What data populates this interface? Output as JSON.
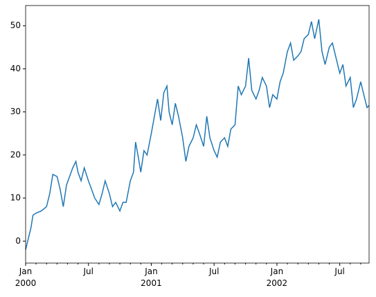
{
  "chart_data": {
    "type": "line",
    "x": [
      0,
      0.3,
      0.5,
      0.7,
      1,
      1.5,
      2,
      2.3,
      2.6,
      3,
      3.3,
      3.6,
      3.9,
      4.2,
      4.5,
      4.8,
      5,
      5.3,
      5.6,
      6,
      6.3,
      6.6,
      7,
      7.3,
      7.6,
      8,
      8.3,
      8.6,
      9,
      9.3,
      9.6,
      10,
      10.3,
      10.5,
      10.8,
      11,
      11.3,
      11.6,
      12,
      12.3,
      12.6,
      12.9,
      13.2,
      13.5,
      13.7,
      14,
      14.3,
      14.6,
      15,
      15.3,
      15.6,
      16,
      16.3,
      16.6,
      17,
      17.3,
      17.6,
      18,
      18.3,
      18.6,
      19,
      19.3,
      19.6,
      20,
      20.3,
      20.6,
      21,
      21.3,
      21.6,
      22,
      22.3,
      22.6,
      23,
      23.3,
      23.6,
      24,
      24.3,
      24.6,
      25,
      25.3,
      25.6,
      26,
      26.3,
      26.6,
      27,
      27.3,
      27.6,
      28,
      28.3,
      28.6,
      29,
      29.3,
      29.6,
      30,
      30.3,
      30.6,
      31,
      31.3,
      31.6,
      32,
      32.3,
      32.6,
      32.8
    ],
    "series": [
      {
        "color": "#1f77b4",
        "values": [
          -2,
          1,
          3,
          6,
          6.5,
          7,
          8,
          11,
          15.5,
          15,
          12,
          8,
          13,
          15,
          17,
          18.5,
          16,
          14,
          17,
          14,
          12,
          10,
          8.5,
          11,
          14,
          11,
          8,
          9,
          7,
          9,
          9,
          14,
          16,
          23,
          19,
          16,
          21,
          20,
          25,
          29,
          33,
          28,
          34.5,
          36,
          30,
          27,
          32,
          29,
          24,
          18.5,
          22,
          24,
          27,
          25,
          22,
          29,
          24,
          21,
          19.5,
          23,
          24,
          22,
          26,
          27,
          36,
          34,
          36,
          42.5,
          35,
          33,
          35,
          38,
          36,
          31,
          34,
          33,
          37,
          39,
          44,
          46,
          42,
          43,
          44,
          47,
          48,
          51,
          47,
          51.5,
          44,
          41,
          45,
          46,
          43,
          39,
          41,
          36,
          38,
          31,
          33,
          37,
          34,
          31,
          31.5
        ]
      }
    ],
    "xlim": [
      0,
      32.8
    ],
    "xticks": [
      {
        "value": 0,
        "label": "Jan\n2000"
      },
      {
        "value": 6,
        "label": "Jul"
      },
      {
        "value": 12,
        "label": "Jan\n2001"
      },
      {
        "value": 18,
        "label": "Jul"
      },
      {
        "value": 24,
        "label": "Jan\n2002"
      },
      {
        "value": 30,
        "label": "Jul"
      }
    ],
    "xminor_ticks": [
      1,
      2,
      3,
      4,
      5,
      7,
      8,
      9,
      10,
      11,
      13,
      14,
      15,
      16,
      17,
      19,
      20,
      21,
      22,
      23,
      25,
      26,
      27,
      28,
      29,
      31,
      32
    ],
    "ylim": [
      -5.1,
      54.7
    ],
    "yticks": [
      0,
      10,
      20,
      30,
      40,
      50
    ]
  }
}
